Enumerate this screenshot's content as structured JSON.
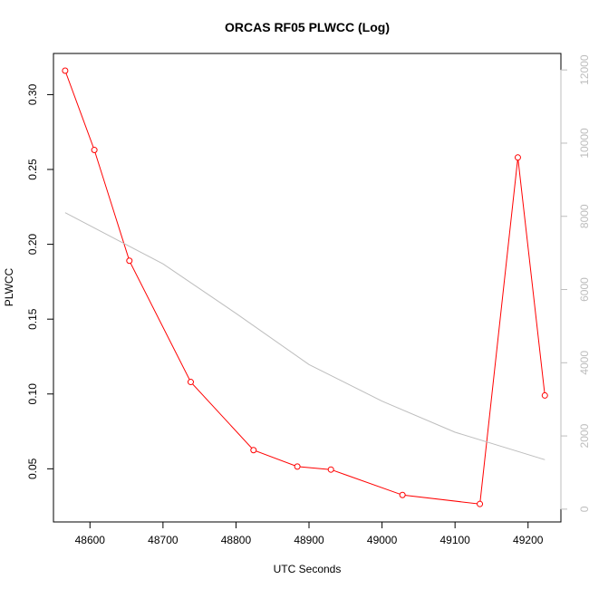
{
  "chart_data": {
    "type": "line",
    "title": "ORCAS RF05 PLWCC (Log)",
    "xlabel": "UTC Seconds",
    "ylabel": "PLWCC",
    "xlim": [
      48550,
      49245
    ],
    "ylim": [
      0.0145,
      0.3275
    ],
    "y2lim": [
      -350,
      12450
    ],
    "x_ticks": [
      48600,
      48700,
      48800,
      48900,
      49000,
      49100,
      49200
    ],
    "y_ticks": [
      0.05,
      0.1,
      0.15,
      0.2,
      0.25,
      0.3
    ],
    "y_tick_labels": [
      "0.05",
      "0.10",
      "0.15",
      "0.20",
      "0.25",
      "0.30"
    ],
    "y2_ticks": [
      0,
      2000,
      4000,
      6000,
      8000,
      10000,
      12000
    ],
    "grid": false,
    "series": [
      {
        "axis": "left",
        "color": "#ff0000",
        "markers": "open-circle",
        "x": [
          48566,
          48606,
          48654,
          48738,
          48824,
          48884,
          48930,
          49028,
          49134,
          49186,
          49223
        ],
        "y": [
          0.316,
          0.263,
          0.189,
          0.108,
          0.0625,
          0.0515,
          0.0495,
          0.0325,
          0.0265,
          0.258,
          0.099
        ]
      },
      {
        "axis": "right",
        "color": "#bdbdbd",
        "markers": "none",
        "x": [
          48566,
          48700,
          48800,
          48900,
          49000,
          49100,
          49223
        ],
        "y": [
          8100,
          6700,
          5350,
          3950,
          2950,
          2100,
          1350
        ]
      }
    ]
  }
}
